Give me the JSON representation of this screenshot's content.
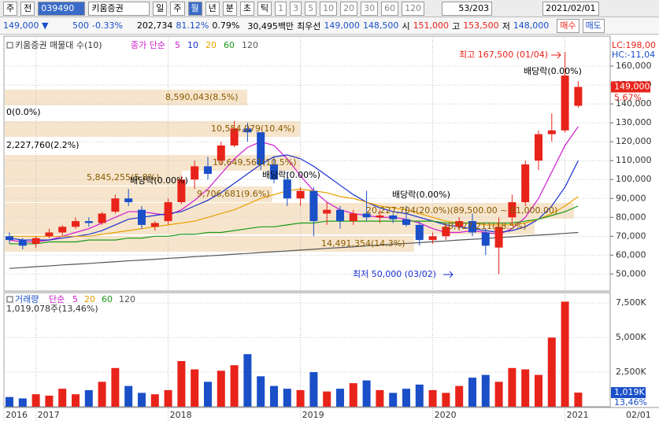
{
  "toolbar": {
    "period": "주",
    "prev": "전",
    "code": "039490",
    "name": "키움증권",
    "intervals": [
      "일",
      "주",
      "월",
      "년",
      "분",
      "초",
      "틱"
    ],
    "steps": [
      "1",
      "3",
      "5",
      "10",
      "20",
      "30",
      "60",
      "120"
    ],
    "page": "53/203",
    "date": "2021/02/01"
  },
  "quote": {
    "price": "149,000 ▼",
    "change": "500",
    "change_pct": "-0.33%",
    "volume": "202,734",
    "vol_ratio": "81.12%",
    "turnover": "0.79%",
    "amount": "30,495백만",
    "best_label": "최우선",
    "ask": "149,000",
    "bid": "148,500",
    "open_label": "시",
    "open": "151,000",
    "high_label": "고",
    "high": "153,500",
    "low_label": "저",
    "low": "148,000",
    "buy": "매수",
    "sell": "매도"
  },
  "chart_data": [
    {
      "type": "candlestick",
      "legend_title": "키움증권 매물대 수(10)",
      "ma_label": "종가 단순",
      "up_color": "#e8231a",
      "down_color": "#1a4fc8",
      "categories": [
        "2016",
        null,
        "2017",
        null,
        null,
        null,
        null,
        null,
        null,
        null,
        null,
        null,
        "2018",
        null,
        null,
        null,
        null,
        null,
        null,
        null,
        null,
        null,
        "2019",
        null,
        null,
        null,
        null,
        null,
        null,
        null,
        null,
        null,
        "2020",
        null,
        null,
        null,
        null,
        null,
        null,
        null,
        null,
        null,
        "2021",
        null
      ],
      "end_label": "02/01",
      "open": [
        70000,
        68000,
        66000,
        70000,
        72000,
        75000,
        78000,
        77000,
        83000,
        90000,
        84000,
        75000,
        78000,
        88000,
        100000,
        107000,
        110000,
        118000,
        127000,
        125000,
        108000,
        100000,
        90000,
        94000,
        82000,
        84000,
        78000,
        82000,
        80000,
        81000,
        79000,
        76000,
        68000,
        70000,
        75000,
        78000,
        72000,
        64000,
        80000,
        88000,
        110000,
        124000,
        126000,
        139000
      ],
      "high": [
        72000,
        69000,
        70000,
        74000,
        76000,
        80000,
        80000,
        83000,
        92000,
        95000,
        86000,
        78000,
        90000,
        102000,
        110000,
        112000,
        120000,
        131000,
        130000,
        125000,
        112000,
        104000,
        96000,
        96000,
        88000,
        86000,
        84000,
        94000,
        84000,
        82000,
        86000,
        78000,
        72000,
        76000,
        80000,
        82000,
        74000,
        80000,
        92000,
        110000,
        126000,
        135000,
        167500,
        152000
      ],
      "low": [
        66000,
        63000,
        64000,
        69000,
        70000,
        74000,
        75000,
        76000,
        82000,
        86000,
        74000,
        73000,
        76000,
        87000,
        95000,
        100000,
        108000,
        117000,
        120000,
        105000,
        98000,
        86000,
        86000,
        70000,
        76000,
        74000,
        76000,
        78000,
        77000,
        77000,
        75000,
        65000,
        66000,
        68000,
        73000,
        70000,
        60000,
        50000,
        76000,
        86000,
        105000,
        120000,
        125000,
        138000
      ],
      "close": [
        68000,
        65000,
        69000,
        72000,
        75000,
        78000,
        77000,
        82000,
        90000,
        88000,
        76000,
        77000,
        88000,
        100000,
        107000,
        103000,
        118000,
        127000,
        125000,
        108000,
        100000,
        90000,
        94000,
        78000,
        84000,
        78000,
        82000,
        80000,
        81000,
        79000,
        76000,
        68000,
        70000,
        75000,
        78000,
        72000,
        65000,
        75000,
        88000,
        108000,
        124000,
        126000,
        155000,
        149000
      ],
      "series": [
        {
          "name": "5",
          "color": "#d01ad0",
          "values": [
            68000,
            67000,
            67000,
            68000,
            70000,
            72000,
            74000,
            77000,
            80000,
            83000,
            83000,
            82000,
            81000,
            84000,
            89000,
            95000,
            103000,
            111000,
            117000,
            120000,
            118000,
            111000,
            102000,
            94000,
            88000,
            84000,
            82000,
            81000,
            80000,
            80000,
            79000,
            77000,
            74000,
            72000,
            72000,
            73000,
            72000,
            71000,
            74000,
            80000,
            90000,
            104000,
            118000,
            128000
          ]
        },
        {
          "name": "10",
          "color": "#1a2fd0",
          "values": [
            69000,
            68000,
            68000,
            68000,
            69000,
            70000,
            71000,
            73000,
            76000,
            79000,
            80000,
            81000,
            82000,
            83000,
            86000,
            89000,
            93000,
            98000,
            103000,
            108000,
            112000,
            113000,
            111000,
            107000,
            102000,
            97000,
            92000,
            88000,
            85000,
            83000,
            82000,
            80000,
            78000,
            76000,
            75000,
            74000,
            73000,
            72000,
            73000,
            75000,
            79000,
            86000,
            96000,
            110000
          ]
        },
        {
          "name": "20",
          "color": "#e8a000",
          "values": [
            70000,
            70000,
            70000,
            70000,
            70000,
            70000,
            70000,
            71000,
            72000,
            73000,
            74000,
            75000,
            76000,
            77000,
            78000,
            80000,
            82000,
            84000,
            87000,
            90000,
            92000,
            94000,
            95000,
            94000,
            93000,
            91000,
            90000,
            88000,
            86000,
            85000,
            84000,
            82000,
            80000,
            78000,
            77000,
            77000,
            76000,
            76000,
            76000,
            77000,
            79000,
            82000,
            86000,
            91000
          ]
        },
        {
          "name": "60",
          "color": "#1a9a1a",
          "values": [
            66000,
            66000,
            66000,
            67000,
            67000,
            67000,
            68000,
            68000,
            68000,
            69000,
            69000,
            70000,
            70000,
            71000,
            71000,
            72000,
            72000,
            73000,
            74000,
            75000,
            75000,
            76000,
            77000,
            77000,
            78000,
            78000,
            78000,
            78000,
            78000,
            78000,
            78000,
            78000,
            78000,
            77000,
            77000,
            77000,
            77000,
            77000,
            77000,
            78000,
            79000,
            81000,
            83000,
            86000
          ]
        },
        {
          "name": "120",
          "color": "#555555",
          "values": [
            53000,
            53400,
            53900,
            54300,
            54800,
            55200,
            55600,
            56100,
            56500,
            57000,
            57400,
            57800,
            58300,
            58700,
            59200,
            59600,
            60000,
            60500,
            60900,
            61400,
            61800,
            62200,
            62700,
            63100,
            63600,
            64000,
            64400,
            64900,
            65300,
            65800,
            66200,
            66600,
            67100,
            67500,
            68000,
            68400,
            68800,
            69300,
            69700,
            70200,
            70600,
            71000,
            71500,
            72000
          ]
        }
      ],
      "ylim": [
        41000,
        175000
      ],
      "yticks": [
        {
          "value": 50000,
          "label": "50,000"
        },
        {
          "value": 60000,
          "label": "60,000"
        },
        {
          "value": 70000,
          "label": "70,000"
        },
        {
          "value": 80000,
          "label": "80,000"
        },
        {
          "value": 90000,
          "label": "90,000"
        },
        {
          "value": 100000,
          "label": "100,000"
        },
        {
          "value": 110000,
          "label": "110,000"
        },
        {
          "value": 120000,
          "label": "120,000"
        },
        {
          "value": 130000,
          "label": "130,000"
        },
        {
          "value": 140000,
          "label": "140,000"
        },
        {
          "value": 150000,
          "label": "150,000"
        },
        {
          "value": 160000,
          "label": "160,000"
        }
      ],
      "grid": true,
      "lc": "LC:198,00",
      "hc": "HC:-11,04",
      "current_price": {
        "value": 149000,
        "label": "149,000"
      },
      "current_pct": "5.67%",
      "annotations": [
        "8,590,043(8.5%)",
        "0(0.0%)",
        "10,554,079(10.4%)",
        "2,227,760(2.2%)",
        "10,649,561(10.5%)",
        "5,845,255(5.8%)",
        "배당락(0.00%)",
        "9,706,681(9.6%)",
        "배당락(0.00%)",
        "배당락(0.00%)",
        "20,227,704(20.0%)(89,500.00 ~ 81,000.00)",
        "18,727,211(18.5%)",
        "14,491,354(14.3%)",
        "최고 167,500 (01/04)",
        "배당락(0.00%)",
        "최저 50,000 (03/02)"
      ]
    },
    {
      "type": "bar",
      "title": "거래량",
      "ma_label": "단순",
      "ma_names": [
        "5",
        "20",
        "60",
        "120"
      ],
      "ma_colors": [
        "#d01ad0",
        "#e8a000",
        "#1a9a1a",
        "#555555"
      ],
      "summary": "1,019,078주(13,46%)",
      "values": [
        700,
        600,
        900,
        800,
        1300,
        900,
        1200,
        1800,
        2800,
        1500,
        1000,
        900,
        1200,
        3300,
        2700,
        1800,
        2600,
        3000,
        3800,
        2200,
        1500,
        1300,
        1200,
        2500,
        1100,
        1300,
        1700,
        1900,
        1200,
        1000,
        1300,
        1600,
        1200,
        1000,
        1500,
        2100,
        2300,
        1800,
        2800,
        2700,
        2300,
        5000,
        7600,
        1019
      ],
      "ylim": [
        0,
        8250
      ],
      "yticks": [
        {
          "value": 2500,
          "label": "2,500K"
        },
        {
          "value": 5000,
          "label": "5,000K"
        },
        {
          "value": 7500,
          "label": "7,500K"
        }
      ],
      "current": {
        "value": 1019,
        "label": "1,019K"
      },
      "current_pct": "13,46%"
    }
  ]
}
